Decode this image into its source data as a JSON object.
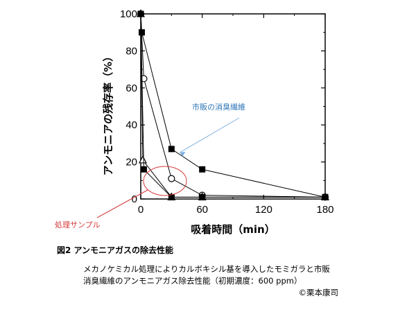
{
  "chart_data": {
    "type": "line",
    "xlabel": "吸着時間（min）",
    "ylabel": "アンモニアの残存率（%）",
    "xlim": [
      0,
      180
    ],
    "ylim": [
      0,
      100
    ],
    "x_ticks": [
      0,
      60,
      120,
      180
    ],
    "y_ticks": [
      0,
      20,
      40,
      60,
      80,
      100
    ],
    "grid": false,
    "series": [
      {
        "marker": "filled-square",
        "x": [
          0,
          1,
          30,
          60,
          180
        ],
        "y": [
          100,
          90,
          27,
          16,
          1
        ]
      },
      {
        "marker": "open-circle",
        "x": [
          0,
          3,
          30,
          60,
          180
        ],
        "y": [
          100,
          65,
          11,
          2,
          1
        ]
      },
      {
        "marker": "open-triangle",
        "x": [
          0,
          2,
          30,
          60,
          180
        ],
        "y": [
          100,
          21,
          1,
          1,
          1
        ]
      },
      {
        "marker": "filled-square",
        "x": [
          0,
          3,
          30,
          60,
          180
        ],
        "y": [
          100,
          16,
          1,
          1,
          1
        ]
      }
    ],
    "annotations": [
      {
        "text": "市販の消臭繊維",
        "color": "#2e75b6",
        "points_to_series": 0
      },
      {
        "text": "処理サンプル",
        "color": "#d63a3a",
        "points_to_series": [
          2,
          3
        ]
      }
    ]
  },
  "caption": {
    "title": "図2 アンモニアガスの除去性能",
    "line1": "メカノケミカル処理によりカルボキシル基を導入したモミガラと市販",
    "line2": "消臭繊維のアンモニアガス除去性能（初期濃度：600 ppm）",
    "copyright": "©栗本康司"
  }
}
